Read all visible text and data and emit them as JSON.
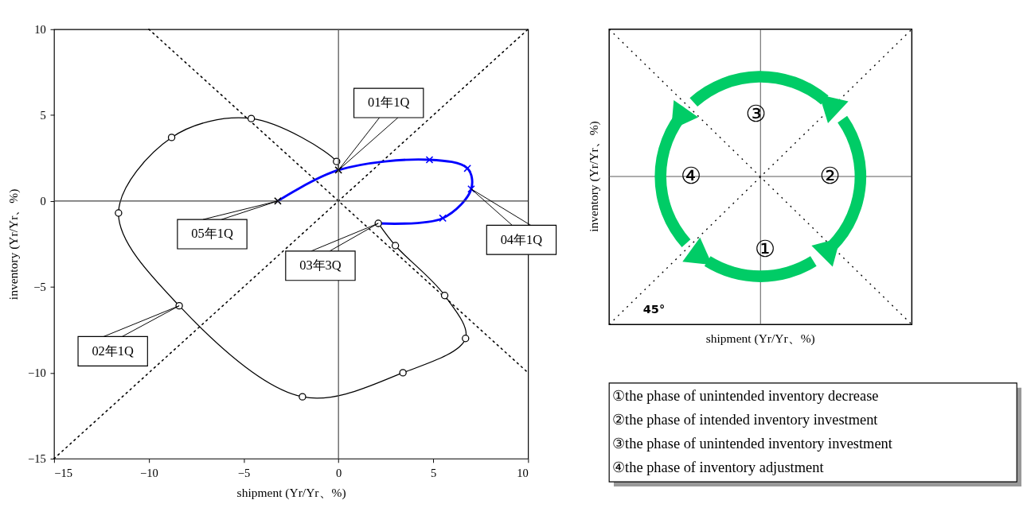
{
  "chart_data": [
    {
      "type": "line",
      "xlabel": "shipment (Yr/Yr、%)",
      "ylabel": "inventory (Yr/Yr、%)",
      "xlim": [
        -15,
        10
      ],
      "xticks": [
        -15,
        -10,
        -5,
        0,
        5,
        10
      ],
      "ylim": [
        -15,
        10
      ],
      "yticks": [
        -15,
        -10,
        -5,
        0,
        5,
        10
      ],
      "grid": false,
      "ref_lines": [
        {
          "axis": "x",
          "value": 0,
          "color": "#555555"
        },
        {
          "axis": "y",
          "value": 0,
          "color": "#444444"
        }
      ],
      "series": [
        {
          "type": "line",
          "color": "#000000",
          "line_style": "dotted",
          "x": [
            -15,
            10
          ],
          "values": [
            -15,
            10
          ]
        },
        {
          "type": "line",
          "color": "#000000",
          "line_style": "dotted",
          "x": [
            -10,
            10
          ],
          "values": [
            10,
            -10
          ]
        },
        {
          "type": "line",
          "color": "#000000",
          "line_style": "solid",
          "x": [
            0,
            -0.1,
            -4.6,
            -8.8,
            -11.6,
            -8.4,
            -1.9,
            3.4,
            6.7,
            5.6,
            3.0,
            2.1
          ],
          "values": [
            1.8,
            2.3,
            4.8,
            3.7,
            -0.7,
            -6.1,
            -11.4,
            -10.0,
            -8.0,
            -5.5,
            -2.6,
            -1.3
          ]
        },
        {
          "type": "line",
          "color": "#0000ff",
          "line_style": "solid",
          "x": [
            2.1,
            5.5,
            7.0,
            6.8,
            4.8,
            0,
            -3.2
          ],
          "values": [
            -1.3,
            -1.0,
            0.7,
            1.9,
            2.4,
            1.8,
            0
          ]
        },
        {
          "type": "scatter",
          "color": "#000000",
          "marker": "circle",
          "x": [
            -0.1,
            -4.6,
            -8.8,
            -11.6,
            -8.4,
            -1.9,
            3.4,
            6.7,
            5.6,
            3.0,
            2.1
          ],
          "values": [
            2.3,
            4.8,
            3.7,
            -0.7,
            -6.1,
            -11.4,
            -10.0,
            -8.0,
            -5.5,
            -2.6,
            -1.3
          ]
        },
        {
          "type": "scatter",
          "color": "#0000ff",
          "marker": "cross",
          "x": [
            5.5,
            7.0,
            6.8,
            4.8
          ],
          "values": [
            -1.0,
            0.7,
            1.9,
            2.4
          ]
        },
        {
          "type": "scatter",
          "color": "#000000",
          "marker": "cross",
          "x": [
            0,
            -3.2
          ],
          "values": [
            1.8,
            0
          ]
        }
      ],
      "annotations": [
        {
          "text": "01年1Q",
          "x": 0,
          "y": 1.8
        },
        {
          "text": "05年1Q",
          "x": -3.2,
          "y": 0
        },
        {
          "text": "04年1Q",
          "x": 7.0,
          "y": 0.7
        },
        {
          "text": "03年3Q",
          "x": 2.1,
          "y": -1.3
        },
        {
          "text": "02年1Q",
          "x": -8.4,
          "y": -6.1
        }
      ]
    },
    {
      "type": "other",
      "xlabel": "shipment (Yr/Yr、%)",
      "ylabel": "inventory (Yr/Yr、%)",
      "annotations": [
        "①",
        "②",
        "③",
        "④",
        "45°"
      ]
    },
    {
      "type": "other",
      "annotations": [
        "①the phase of unintended inventory decrease",
        "②the phase of intended inventory investment",
        "③the phase of unintended inventory investment",
        "④the phase of inventory adjustment"
      ]
    }
  ]
}
